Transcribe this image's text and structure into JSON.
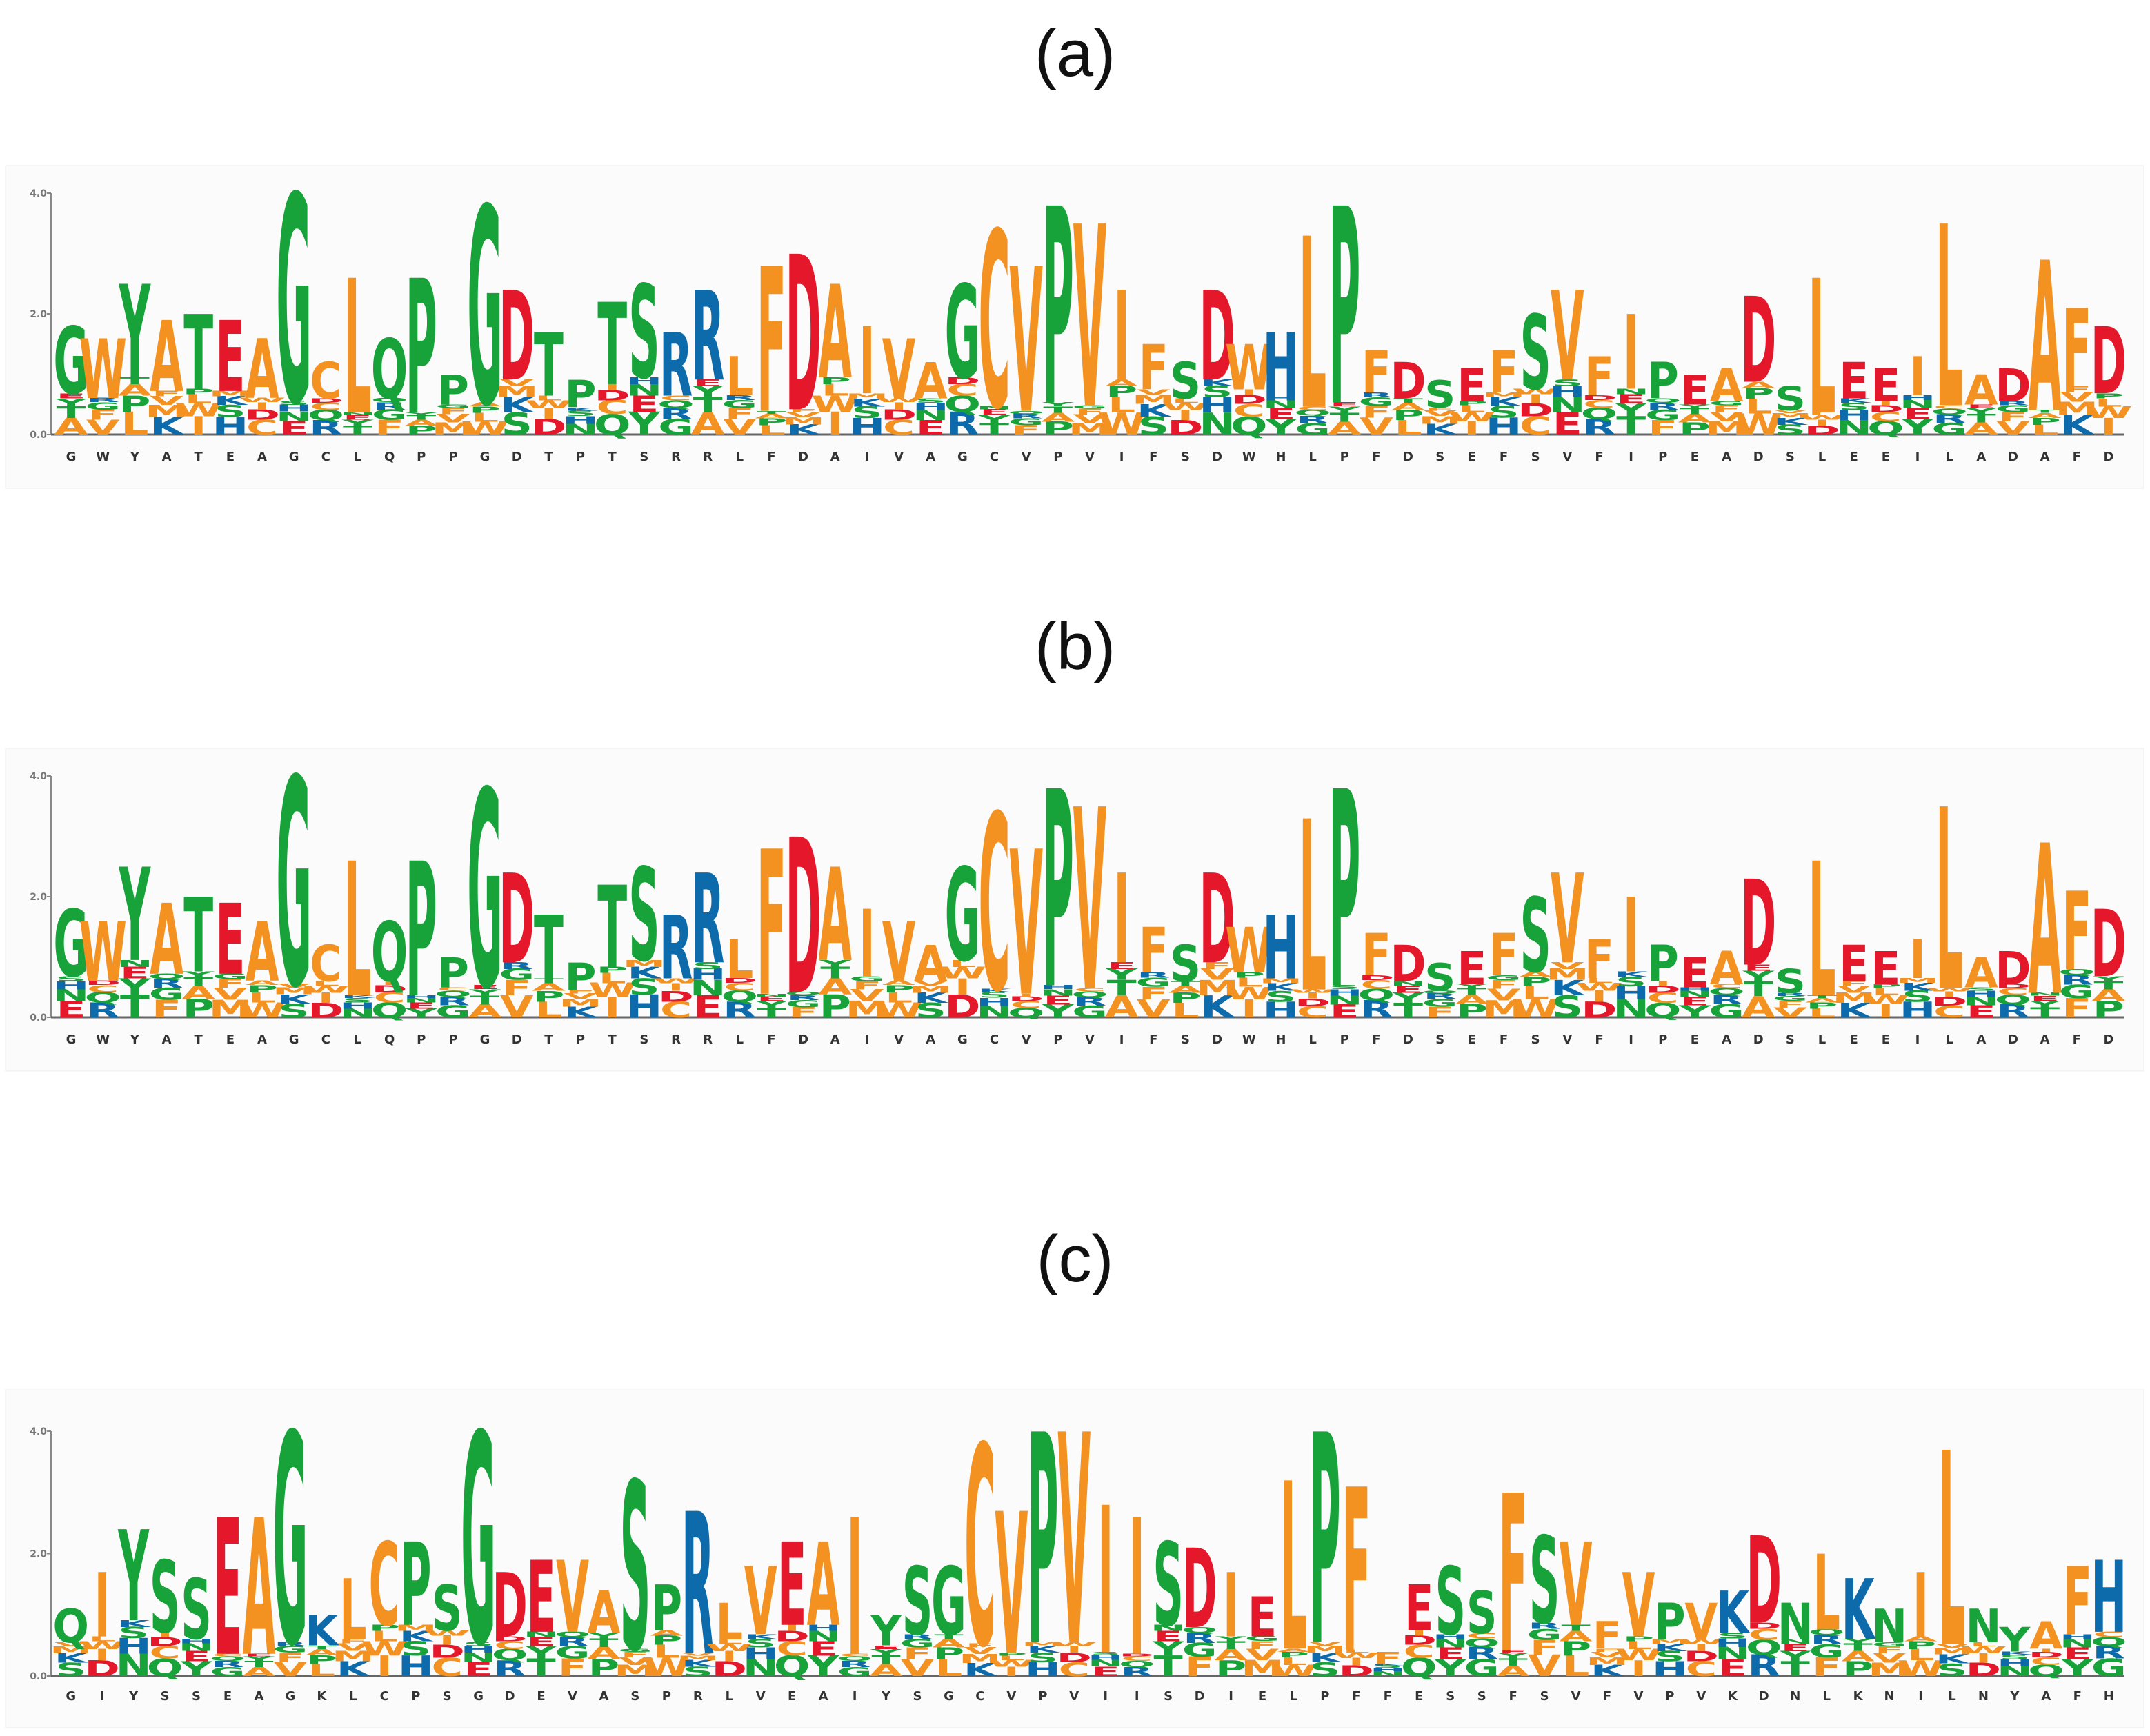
{
  "chart_data": [
    {
      "type": "sequence_logo",
      "panel_label": "(a)",
      "y_ticks": [
        "0.0",
        "2.0",
        "4.0"
      ],
      "ylim": [
        0,
        4
      ],
      "colors": {
        "acidic": "#e5172a",
        "hydrophobic": "#f39121",
        "basic": "#0e6bab",
        "polar": "#17a23a"
      },
      "positions": [
        {
          "x": "G",
          "top": "G",
          "h": 1.8
        },
        {
          "x": "W",
          "top": "W",
          "h": 1.6
        },
        {
          "x": "Y",
          "top": "Y",
          "h": 2.5
        },
        {
          "x": "A",
          "top": "A",
          "h": 1.9
        },
        {
          "x": "T",
          "top": "T",
          "h": 2.0
        },
        {
          "x": "E",
          "top": "E",
          "h": 1.9
        },
        {
          "x": "A",
          "top": "A",
          "h": 1.6
        },
        {
          "x": "G",
          "top": "G",
          "h": 4.0
        },
        {
          "x": "C",
          "top": "C",
          "h": 1.2
        },
        {
          "x": "L",
          "top": "L",
          "h": 2.6
        },
        {
          "x": "Q",
          "top": "Q",
          "h": 1.6
        },
        {
          "x": "P",
          "top": "P",
          "h": 2.6
        },
        {
          "x": "P",
          "top": "P",
          "h": 1.0
        },
        {
          "x": "G",
          "top": "G",
          "h": 3.8
        },
        {
          "x": "D",
          "top": "D",
          "h": 2.4
        },
        {
          "x": "T",
          "top": "T",
          "h": 1.7
        },
        {
          "x": "P",
          "top": "P",
          "h": 0.9
        },
        {
          "x": "T",
          "top": "T",
          "h": 2.2
        },
        {
          "x": "S",
          "top": "S",
          "h": 2.5
        },
        {
          "x": "R",
          "top": "R",
          "h": 1.7
        },
        {
          "x": "R",
          "top": "R",
          "h": 2.4
        },
        {
          "x": "L",
          "top": "L",
          "h": 1.3
        },
        {
          "x": "F",
          "top": "F",
          "h": 2.8
        },
        {
          "x": "D",
          "top": "D",
          "h": 3.0
        },
        {
          "x": "A",
          "top": "A",
          "h": 2.5
        },
        {
          "x": "I",
          "top": "I",
          "h": 1.8
        },
        {
          "x": "V",
          "top": "V",
          "h": 1.6
        },
        {
          "x": "A",
          "top": "A",
          "h": 1.2
        },
        {
          "x": "G",
          "top": "G",
          "h": 2.5
        },
        {
          "x": "C",
          "top": "C",
          "h": 3.4
        },
        {
          "x": "V",
          "top": "V",
          "h": 2.8
        },
        {
          "x": "P",
          "top": "P",
          "h": 3.8
        },
        {
          "x": "V",
          "top": "V",
          "h": 3.5
        },
        {
          "x": "I",
          "top": "I",
          "h": 2.4
        },
        {
          "x": "F",
          "top": "F",
          "h": 1.5
        },
        {
          "x": "S",
          "top": "S",
          "h": 1.2
        },
        {
          "x": "D",
          "top": "D",
          "h": 2.4
        },
        {
          "x": "W",
          "top": "W",
          "h": 1.5
        },
        {
          "x": "H",
          "top": "H",
          "h": 1.7
        },
        {
          "x": "L",
          "top": "L",
          "h": 3.3
        },
        {
          "x": "P",
          "top": "P",
          "h": 3.8
        },
        {
          "x": "F",
          "top": "F",
          "h": 1.4
        },
        {
          "x": "D",
          "top": "D",
          "h": 1.2
        },
        {
          "x": "S",
          "top": "S",
          "h": 0.9
        },
        {
          "x": "E",
          "top": "E",
          "h": 1.1
        },
        {
          "x": "F",
          "top": "F",
          "h": 1.4
        },
        {
          "x": "S",
          "top": "S",
          "h": 2.0
        },
        {
          "x": "V",
          "top": "V",
          "h": 2.4
        },
        {
          "x": "F",
          "top": "F",
          "h": 1.3
        },
        {
          "x": "I",
          "top": "I",
          "h": 2.0
        },
        {
          "x": "P",
          "top": "P",
          "h": 1.2
        },
        {
          "x": "E",
          "top": "E",
          "h": 1.0
        },
        {
          "x": "A",
          "top": "A",
          "h": 1.1
        },
        {
          "x": "D",
          "top": "D",
          "h": 2.3
        },
        {
          "x": "S",
          "top": "S",
          "h": 0.8
        },
        {
          "x": "L",
          "top": "L",
          "h": 2.6
        },
        {
          "x": "E",
          "top": "E",
          "h": 1.2
        },
        {
          "x": "E",
          "top": "E",
          "h": 1.1
        },
        {
          "x": "I",
          "top": "I",
          "h": 1.3
        },
        {
          "x": "L",
          "top": "L",
          "h": 3.5
        },
        {
          "x": "A",
          "top": "A",
          "h": 1.0
        },
        {
          "x": "D",
          "top": "D",
          "h": 1.1
        },
        {
          "x": "A",
          "top": "A",
          "h": 2.9
        },
        {
          "x": "F",
          "top": "F",
          "h": 2.1
        },
        {
          "x": "D",
          "top": "D",
          "h": 1.8
        }
      ]
    },
    {
      "type": "sequence_logo",
      "panel_label": "(b)",
      "y_ticks": [
        "0.0",
        "2.0",
        "4.0"
      ],
      "ylim": [
        0,
        4
      ],
      "colors": {
        "acidic": "#e5172a",
        "hydrophobic": "#f39121",
        "basic": "#0e6bab",
        "polar": "#17a23a"
      },
      "positions": [
        {
          "x": "G",
          "top": "G",
          "h": 1.8
        },
        {
          "x": "W",
          "top": "W",
          "h": 1.6
        },
        {
          "x": "Y",
          "top": "Y",
          "h": 2.5
        },
        {
          "x": "A",
          "top": "A",
          "h": 1.9
        },
        {
          "x": "T",
          "top": "T",
          "h": 2.0
        },
        {
          "x": "E",
          "top": "E",
          "h": 1.9
        },
        {
          "x": "A",
          "top": "A",
          "h": 1.6
        },
        {
          "x": "G",
          "top": "G",
          "h": 4.0
        },
        {
          "x": "C",
          "top": "C",
          "h": 1.2
        },
        {
          "x": "L",
          "top": "L",
          "h": 2.6
        },
        {
          "x": "Q",
          "top": "Q",
          "h": 1.6
        },
        {
          "x": "P",
          "top": "P",
          "h": 2.6
        },
        {
          "x": "P",
          "top": "P",
          "h": 1.0
        },
        {
          "x": "G",
          "top": "G",
          "h": 3.8
        },
        {
          "x": "D",
          "top": "D",
          "h": 2.4
        },
        {
          "x": "T",
          "top": "T",
          "h": 1.7
        },
        {
          "x": "P",
          "top": "P",
          "h": 0.9
        },
        {
          "x": "T",
          "top": "T",
          "h": 2.2
        },
        {
          "x": "S",
          "top": "S",
          "h": 2.5
        },
        {
          "x": "R",
          "top": "R",
          "h": 1.7
        },
        {
          "x": "R",
          "top": "R",
          "h": 2.4
        },
        {
          "x": "L",
          "top": "L",
          "h": 1.3
        },
        {
          "x": "F",
          "top": "F",
          "h": 2.8
        },
        {
          "x": "D",
          "top": "D",
          "h": 3.0
        },
        {
          "x": "A",
          "top": "A",
          "h": 2.5
        },
        {
          "x": "I",
          "top": "I",
          "h": 1.8
        },
        {
          "x": "V",
          "top": "V",
          "h": 1.6
        },
        {
          "x": "A",
          "top": "A",
          "h": 1.2
        },
        {
          "x": "G",
          "top": "G",
          "h": 2.5
        },
        {
          "x": "C",
          "top": "C",
          "h": 3.4
        },
        {
          "x": "V",
          "top": "V",
          "h": 2.8
        },
        {
          "x": "P",
          "top": "P",
          "h": 3.8
        },
        {
          "x": "V",
          "top": "V",
          "h": 3.5
        },
        {
          "x": "I",
          "top": "I",
          "h": 2.4
        },
        {
          "x": "F",
          "top": "F",
          "h": 1.5
        },
        {
          "x": "S",
          "top": "S",
          "h": 1.2
        },
        {
          "x": "D",
          "top": "D",
          "h": 2.4
        },
        {
          "x": "W",
          "top": "W",
          "h": 1.5
        },
        {
          "x": "H",
          "top": "H",
          "h": 1.7
        },
        {
          "x": "L",
          "top": "L",
          "h": 3.3
        },
        {
          "x": "P",
          "top": "P",
          "h": 3.8
        },
        {
          "x": "F",
          "top": "F",
          "h": 1.4
        },
        {
          "x": "D",
          "top": "D",
          "h": 1.2
        },
        {
          "x": "S",
          "top": "S",
          "h": 0.9
        },
        {
          "x": "E",
          "top": "E",
          "h": 1.1
        },
        {
          "x": "F",
          "top": "F",
          "h": 1.4
        },
        {
          "x": "S",
          "top": "S",
          "h": 2.0
        },
        {
          "x": "V",
          "top": "V",
          "h": 2.4
        },
        {
          "x": "F",
          "top": "F",
          "h": 1.3
        },
        {
          "x": "I",
          "top": "I",
          "h": 2.0
        },
        {
          "x": "P",
          "top": "P",
          "h": 1.2
        },
        {
          "x": "E",
          "top": "E",
          "h": 1.0
        },
        {
          "x": "A",
          "top": "A",
          "h": 1.1
        },
        {
          "x": "D",
          "top": "D",
          "h": 2.3
        },
        {
          "x": "S",
          "top": "S",
          "h": 0.8
        },
        {
          "x": "L",
          "top": "L",
          "h": 2.6
        },
        {
          "x": "E",
          "top": "E",
          "h": 1.2
        },
        {
          "x": "E",
          "top": "E",
          "h": 1.1
        },
        {
          "x": "I",
          "top": "I",
          "h": 1.3
        },
        {
          "x": "L",
          "top": "L",
          "h": 3.5
        },
        {
          "x": "A",
          "top": "A",
          "h": 1.0
        },
        {
          "x": "D",
          "top": "D",
          "h": 1.1
        },
        {
          "x": "A",
          "top": "A",
          "h": 2.9
        },
        {
          "x": "F",
          "top": "F",
          "h": 2.1
        },
        {
          "x": "D",
          "top": "D",
          "h": 1.8
        }
      ]
    },
    {
      "type": "sequence_logo",
      "panel_label": "(c)",
      "y_ticks": [
        "0.0",
        "2.0",
        "4.0"
      ],
      "ylim": [
        0,
        4
      ],
      "colors": {
        "acidic": "#e5172a",
        "hydrophobic": "#f39121",
        "basic": "#0e6bab",
        "polar": "#17a23a"
      },
      "positions": [
        {
          "x": "G",
          "top": "Q",
          "h": 1.1
        },
        {
          "x": "I",
          "top": "I",
          "h": 1.7
        },
        {
          "x": "Y",
          "top": "Y",
          "h": 2.4
        },
        {
          "x": "S",
          "top": "S",
          "h": 1.9
        },
        {
          "x": "S",
          "top": "S",
          "h": 1.6
        },
        {
          "x": "E",
          "top": "E",
          "h": 2.6
        },
        {
          "x": "A",
          "top": "A",
          "h": 2.6
        },
        {
          "x": "G",
          "top": "G",
          "h": 4.0
        },
        {
          "x": "K",
          "top": "K",
          "h": 1.0
        },
        {
          "x": "L",
          "top": "L",
          "h": 1.6
        },
        {
          "x": "C",
          "top": "C",
          "h": 2.2
        },
        {
          "x": "P",
          "top": "P",
          "h": 2.2
        },
        {
          "x": "S",
          "top": "S",
          "h": 1.5
        },
        {
          "x": "G",
          "top": "G",
          "h": 4.0
        },
        {
          "x": "D",
          "top": "D",
          "h": 1.7
        },
        {
          "x": "E",
          "top": "E",
          "h": 1.9
        },
        {
          "x": "V",
          "top": "V",
          "h": 1.9
        },
        {
          "x": "A",
          "top": "A",
          "h": 1.4
        },
        {
          "x": "S",
          "top": "S",
          "h": 3.2
        },
        {
          "x": "P",
          "top": "P",
          "h": 1.5
        },
        {
          "x": "R",
          "top": "R",
          "h": 2.7
        },
        {
          "x": "L",
          "top": "L",
          "h": 1.2
        },
        {
          "x": "V",
          "top": "V",
          "h": 1.8
        },
        {
          "x": "E",
          "top": "E",
          "h": 2.2
        },
        {
          "x": "A",
          "top": "A",
          "h": 2.2
        },
        {
          "x": "I",
          "top": "I",
          "h": 2.6
        },
        {
          "x": "Y",
          "top": "Y",
          "h": 1.0
        },
        {
          "x": "S",
          "top": "S",
          "h": 1.8
        },
        {
          "x": "G",
          "top": "G",
          "h": 1.8
        },
        {
          "x": "C",
          "top": "C",
          "h": 3.8
        },
        {
          "x": "V",
          "top": "V",
          "h": 2.7
        },
        {
          "x": "P",
          "top": "P",
          "h": 4.0
        },
        {
          "x": "V",
          "top": "V",
          "h": 4.0
        },
        {
          "x": "I",
          "top": "I",
          "h": 2.8
        },
        {
          "x": "I",
          "top": "I",
          "h": 2.6
        },
        {
          "x": "S",
          "top": "S",
          "h": 2.2
        },
        {
          "x": "D",
          "top": "D",
          "h": 2.1
        },
        {
          "x": "I",
          "top": "I",
          "h": 1.7
        },
        {
          "x": "E",
          "top": "E",
          "h": 1.3
        },
        {
          "x": "L",
          "top": "L",
          "h": 3.2
        },
        {
          "x": "P",
          "top": "P",
          "h": 4.0
        },
        {
          "x": "F",
          "top": "F",
          "h": 3.1
        },
        {
          "x": "F",
          "top": "F",
          "h": 0.4
        },
        {
          "x": "E",
          "top": "E",
          "h": 1.5
        },
        {
          "x": "S",
          "top": "S",
          "h": 1.8
        },
        {
          "x": "S",
          "top": "S",
          "h": 1.4
        },
        {
          "x": "F",
          "top": "F",
          "h": 3.0
        },
        {
          "x": "S",
          "top": "S",
          "h": 2.3
        },
        {
          "x": "V",
          "top": "V",
          "h": 2.2
        },
        {
          "x": "F",
          "top": "F",
          "h": 0.9
        },
        {
          "x": "V",
          "top": "V",
          "h": 1.7
        },
        {
          "x": "P",
          "top": "P",
          "h": 1.2
        },
        {
          "x": "V",
          "top": "V",
          "h": 1.2
        },
        {
          "x": "K",
          "top": "K",
          "h": 1.4
        },
        {
          "x": "D",
          "top": "D",
          "h": 2.3
        },
        {
          "x": "N",
          "top": "N",
          "h": 1.2
        },
        {
          "x": "L",
          "top": "L",
          "h": 2.0
        },
        {
          "x": "K",
          "top": "K",
          "h": 1.6
        },
        {
          "x": "N",
          "top": "N",
          "h": 1.1
        },
        {
          "x": "I",
          "top": "I",
          "h": 1.7
        },
        {
          "x": "L",
          "top": "L",
          "h": 3.7
        },
        {
          "x": "N",
          "top": "N",
          "h": 1.1
        },
        {
          "x": "Y",
          "top": "Y",
          "h": 0.8
        },
        {
          "x": "A",
          "top": "A",
          "h": 0.9
        },
        {
          "x": "F",
          "top": "F",
          "h": 1.8
        },
        {
          "x": "H",
          "top": "H",
          "h": 1.9
        }
      ]
    }
  ]
}
